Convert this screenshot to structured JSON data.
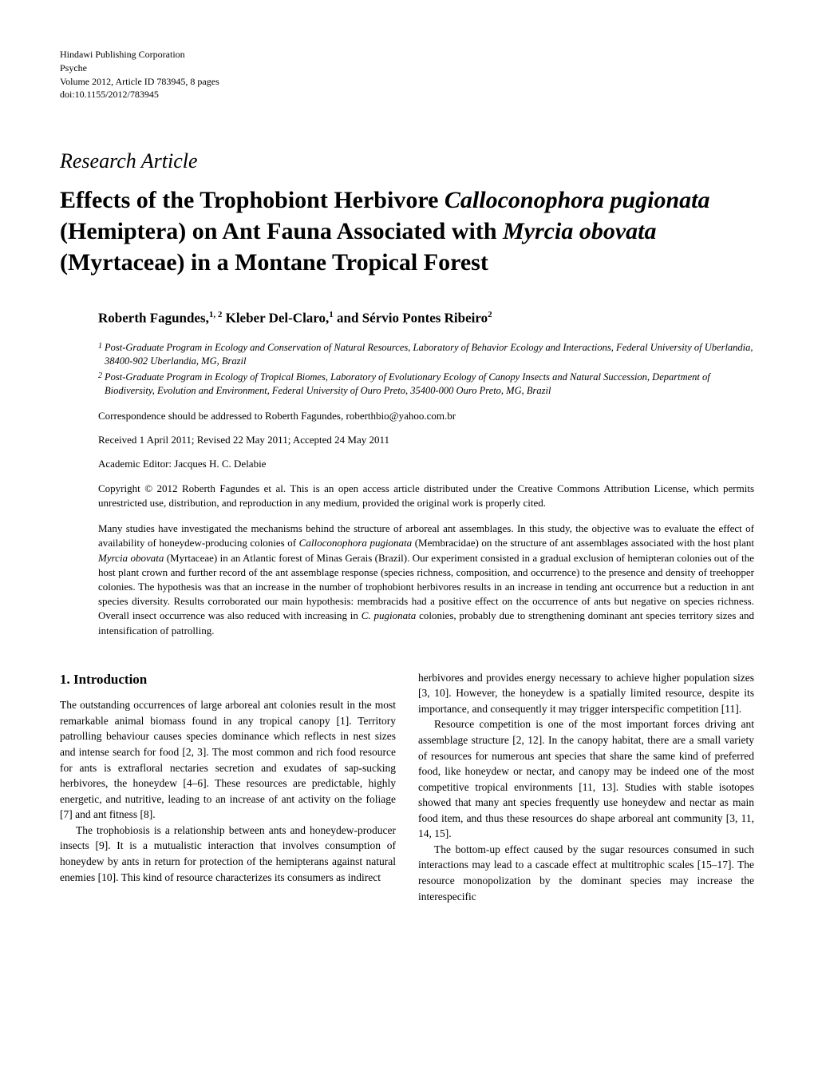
{
  "publisher": {
    "line1": "Hindawi Publishing Corporation",
    "line2": "Psyche",
    "line3": "Volume 2012, Article ID 783945, 8 pages",
    "line4": "doi:10.1155/2012/783945"
  },
  "article_type": "Research Article",
  "title": {
    "part1": "Effects of the Trophobiont Herbivore ",
    "species1": "Calloconophora pugionata",
    "part2": " (Hemiptera) on Ant Fauna Associated with ",
    "species2": "Myrcia obovata",
    "part3": " (Myrtaceae) in a Montane Tropical Forest"
  },
  "authors": {
    "author1_name": "Roberth Fagundes,",
    "author1_sup": "1, 2",
    "author2_name": " Kleber Del-Claro,",
    "author2_sup": "1",
    "author3_name": " and Sérvio Pontes Ribeiro",
    "author3_sup": "2"
  },
  "affiliations": {
    "aff1_num": "1",
    "aff1_text": "Post-Graduate Program in Ecology and Conservation of Natural Resources, Laboratory of Behavior Ecology and Interactions, Federal University of Uberlandia, 38400-902 Uberlandia, MG, Brazil",
    "aff2_num": "2",
    "aff2_text": "Post-Graduate Program in Ecology of Tropical Biomes, Laboratory of Evolutionary Ecology of Canopy Insects and Natural Succession, Department of Biodiversity, Evolution and Environment, Federal University of Ouro Preto, 35400-000 Ouro Preto, MG, Brazil"
  },
  "correspondence": "Correspondence should be addressed to Roberth Fagundes, roberthbio@yahoo.com.br",
  "dates": "Received 1 April 2011; Revised 22 May 2011; Accepted 24 May 2011",
  "editor": "Academic Editor: Jacques H. C. Delabie",
  "copyright": "Copyright © 2012 Roberth Fagundes et al. This is an open access article distributed under the Creative Commons Attribution License, which permits unrestricted use, distribution, and reproduction in any medium, provided the original work is properly cited.",
  "abstract": {
    "p1": "Many studies have investigated the mechanisms behind the structure of arboreal ant assemblages. In this study, the objective was to evaluate the effect of availability of honeydew-producing colonies of ",
    "s1": "Calloconophora pugionata",
    "p2": " (Membracidae) on the structure of ant assemblages associated with the host plant ",
    "s2": "Myrcia obovata",
    "p3": " (Myrtaceae) in an Atlantic forest of Minas Gerais (Brazil). Our experiment consisted in a gradual exclusion of hemipteran colonies out of the host plant crown and further record of the ant assemblage response (species richness, composition, and occurrence) to the presence and density of treehopper colonies. The hypothesis was that an increase in the number of trophobiont herbivores results in an increase in tending ant occurrence but a reduction in ant species diversity. Results corroborated our main hypothesis: membracids had a positive effect on the occurrence of ants but negative on species richness. Overall insect occurrence was also reduced with increasing in ",
    "s3": "C. pugionata",
    "p4": " colonies, probably due to strengthening dominant ant species territory sizes and intensification of patrolling."
  },
  "section1_heading": "1. Introduction",
  "body": {
    "para1": "The outstanding occurrences of large arboreal ant colonies result in the most remarkable animal biomass found in any tropical canopy [1]. Territory patrolling behaviour causes species dominance which reflects in nest sizes and intense search for food [2, 3]. The most common and rich food resource for ants is extrafloral nectaries secretion and exudates of sap-sucking herbivores, the honeydew [4–6]. These resources are predictable, highly energetic, and nutritive, leading to an increase of ant activity on the foliage [7] and ant fitness [8].",
    "para2": "The trophobiosis is a relationship between ants and honeydew-producer insects [9]. It is a mutualistic interaction that involves consumption of honeydew by ants in return for protection of the hemipterans against natural enemies [10]. This kind of resource characterizes its consumers as indirect",
    "para3": "herbivores and provides energy necessary to achieve higher population sizes [3, 10]. However, the honeydew is a spatially limited resource, despite its importance, and consequently it may trigger interspecific competition [11].",
    "para4": "Resource competition is one of the most important forces driving ant assemblage structure [2, 12]. In the canopy habitat, there are a small variety of resources for numerous ant species that share the same kind of preferred food, like honeydew or nectar, and canopy may be indeed one of the most competitive tropical environments [11, 13]. Studies with stable isotopes showed that many ant species frequently use honeydew and nectar as main food item, and thus these resources do shape arboreal ant community [3, 11, 14, 15].",
    "para5": "The bottom-up effect caused by the sugar resources consumed in such interactions may lead to a cascade effect at multitrophic scales [15–17]. The resource monopolization by the dominant species may increase the interespecific"
  }
}
